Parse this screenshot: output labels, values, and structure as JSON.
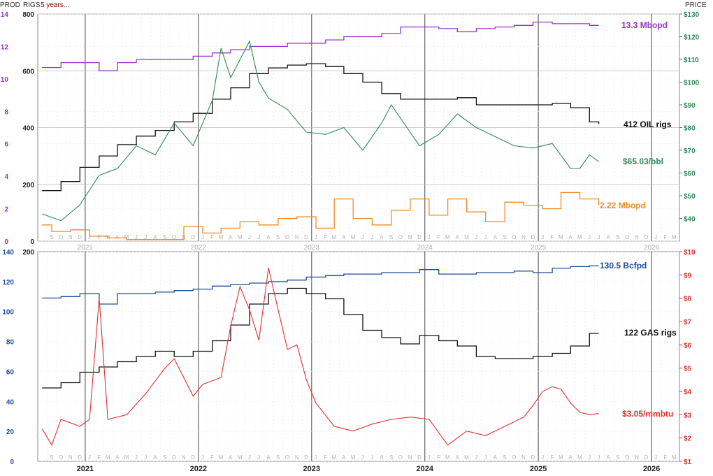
{
  "header": {
    "prod_label": "PROD",
    "rigs_label": "RIGS",
    "period_label": "5 years...",
    "price_label": "PRICE"
  },
  "colors": {
    "oil_prod": "#9933cc",
    "oil_price": "#2e8b57",
    "oil_rigs": "#111111",
    "ngl_prod": "#f08c28",
    "gas_prod": "#1f4e99",
    "gas_price": "#e03030",
    "gas_rigs": "#111111",
    "left_axis_purple": "#9933cc",
    "left_axis_blue": "#1f4e99",
    "right_axis_green": "#2e8b57",
    "right_axis_red": "#e03030",
    "grid": "#cccccc",
    "year_line": "#666666",
    "month_text": "#b0b0b0"
  },
  "chart_data": [
    {
      "type": "line",
      "panel": "oil",
      "x_axis": {
        "start": "2020-08",
        "end": "2026-04",
        "month_letters": [
          "S",
          "O",
          "N",
          "D",
          "J",
          "F",
          "M",
          "A",
          "M",
          "J",
          "J",
          "A",
          "S",
          "O",
          "N",
          "D",
          "J",
          "F",
          "M",
          "A",
          "M",
          "J",
          "J",
          "A",
          "S",
          "O",
          "N",
          "D",
          "J",
          "F",
          "M",
          "A",
          "M",
          "J",
          "J",
          "A",
          "S",
          "O",
          "N",
          "D",
          "J",
          "F",
          "M",
          "A",
          "M",
          "J",
          "J",
          "A",
          "S",
          "O",
          "N",
          "D",
          "J",
          "F",
          "M",
          "A",
          "M",
          "J",
          "J",
          "A",
          "S",
          "O",
          "N",
          "D",
          "J",
          "F",
          "M"
        ],
        "year_labels": [
          "2021",
          "2022",
          "2023",
          "2024",
          "2025",
          "2026"
        ]
      },
      "left_axis_prod": {
        "min": 0,
        "max": 14,
        "ticks": [
          "0",
          "2",
          "4",
          "6",
          "8",
          "10",
          "12",
          "14"
        ]
      },
      "left_axis_rigs": {
        "min": 0,
        "max": 800,
        "ticks": [
          "0",
          "200",
          "400",
          "600",
          "800"
        ]
      },
      "right_axis_price": {
        "min": 30,
        "max": 130,
        "ticks": [
          "$40",
          "$50",
          "$60",
          "$70",
          "$80",
          "$90",
          "$100",
          "$110",
          "$120",
          "$130"
        ]
      },
      "grid": true,
      "series": [
        {
          "name": "13.3 Mbopd",
          "key": "oil_prod",
          "axis": "prod",
          "step": true,
          "x": [
            "2020-08",
            "2020-10",
            "2020-12",
            "2021-02",
            "2021-04",
            "2021-06",
            "2021-08",
            "2021-10",
            "2021-12",
            "2022-02",
            "2022-04",
            "2022-06",
            "2022-08",
            "2022-10",
            "2022-12",
            "2023-02",
            "2023-04",
            "2023-06",
            "2023-08",
            "2023-10",
            "2023-12",
            "2024-02",
            "2024-04",
            "2024-06",
            "2024-08",
            "2024-10",
            "2024-12",
            "2025-02",
            "2025-04",
            "2025-06",
            "2025-07"
          ],
          "y": [
            10.7,
            11.0,
            11.0,
            10.5,
            11.0,
            11.2,
            11.2,
            11.2,
            11.4,
            11.6,
            11.8,
            12.0,
            12.0,
            12.2,
            12.2,
            12.4,
            12.6,
            12.6,
            12.8,
            13.2,
            13.2,
            13.1,
            12.9,
            13.1,
            13.2,
            13.3,
            13.5,
            13.4,
            13.4,
            13.3,
            13.3
          ]
        },
        {
          "name": "412 OIL rigs",
          "key": "oil_rigs",
          "axis": "rigs",
          "step": true,
          "x": [
            "2020-08",
            "2020-10",
            "2020-12",
            "2021-02",
            "2021-04",
            "2021-06",
            "2021-08",
            "2021-10",
            "2021-12",
            "2022-02",
            "2022-04",
            "2022-06",
            "2022-08",
            "2022-10",
            "2022-12",
            "2023-02",
            "2023-04",
            "2023-06",
            "2023-08",
            "2023-10",
            "2023-12",
            "2024-02",
            "2024-04",
            "2024-06",
            "2024-08",
            "2024-10",
            "2024-12",
            "2025-02",
            "2025-04",
            "2025-06",
            "2025-07"
          ],
          "y": [
            178,
            210,
            260,
            300,
            340,
            370,
            390,
            420,
            450,
            500,
            540,
            590,
            610,
            620,
            625,
            615,
            590,
            560,
            520,
            500,
            500,
            500,
            505,
            480,
            480,
            480,
            480,
            485,
            470,
            420,
            412
          ]
        },
        {
          "name": "$65.03/bbl",
          "key": "oil_price",
          "axis": "price",
          "step": false,
          "x": [
            "2020-08",
            "2020-10",
            "2020-12",
            "2021-02",
            "2021-04",
            "2021-06",
            "2021-08",
            "2021-10",
            "2021-12",
            "2022-02",
            "2022-03",
            "2022-04",
            "2022-06",
            "2022-07",
            "2022-08",
            "2022-10",
            "2022-12",
            "2023-02",
            "2023-04",
            "2023-06",
            "2023-08",
            "2023-09",
            "2023-10",
            "2023-12",
            "2024-02",
            "2024-04",
            "2024-06",
            "2024-08",
            "2024-10",
            "2024-12",
            "2025-02",
            "2025-04",
            "2025-05",
            "2025-06",
            "2025-07"
          ],
          "y": [
            42,
            39,
            46,
            59,
            62,
            72,
            68,
            82,
            72,
            92,
            115,
            102,
            118,
            100,
            93,
            88,
            78,
            77,
            80,
            70,
            82,
            90,
            84,
            72,
            77,
            86,
            80,
            76,
            72,
            71,
            73,
            62,
            62,
            68,
            65
          ]
        },
        {
          "name": "2.22 Mbopd",
          "key": "ngl_prod",
          "axis": "prod",
          "step": true,
          "x": [
            "2020-08",
            "2020-09",
            "2020-11",
            "2021-01",
            "2021-03",
            "2021-05",
            "2021-07",
            "2021-09",
            "2021-11",
            "2022-01",
            "2022-03",
            "2022-05",
            "2022-07",
            "2022-09",
            "2022-11",
            "2023-01",
            "2023-03",
            "2023-05",
            "2023-07",
            "2023-09",
            "2023-11",
            "2024-01",
            "2024-03",
            "2024-05",
            "2024-07",
            "2024-09",
            "2024-11",
            "2025-01",
            "2025-03",
            "2025-05",
            "2025-07"
          ],
          "y": [
            1.0,
            0.6,
            0.7,
            0.3,
            0.2,
            0.1,
            0.1,
            0.1,
            0.9,
            0.5,
            0.8,
            1.2,
            1.0,
            1.4,
            1.5,
            0.8,
            2.6,
            1.4,
            1.0,
            1.9,
            2.6,
            1.6,
            2.6,
            1.8,
            1.2,
            2.4,
            2.2,
            2.0,
            3.0,
            2.6,
            2.2
          ]
        }
      ],
      "labels": {
        "oil_prod": "13.3 Mbopd",
        "oil_rigs": "412 OIL rigs",
        "oil_price": "$65.03/bbl",
        "ngl_prod": "2.22 Mbopd"
      }
    },
    {
      "type": "line",
      "panel": "gas",
      "x_axis": {
        "start": "2020-08",
        "end": "2026-04"
      },
      "left_axis_prod": {
        "min": 0,
        "max": 140,
        "ticks": [
          "0",
          "20",
          "40",
          "60",
          "80",
          "100",
          "120",
          "140"
        ]
      },
      "left_axis_rigs": {
        "min": 0,
        "max": 200,
        "ticks": [
          "200"
        ]
      },
      "right_axis_price": {
        "min": 1,
        "max": 10,
        "ticks": [
          "$1",
          "$2",
          "$3",
          "$4",
          "$5",
          "$6",
          "$7",
          "$8",
          "$9",
          "$10"
        ]
      },
      "grid": true,
      "series": [
        {
          "name": "130.5 Bcfpd",
          "key": "gas_prod",
          "axis": "prod",
          "step": true,
          "x": [
            "2020-08",
            "2020-10",
            "2020-12",
            "2021-02",
            "2021-04",
            "2021-06",
            "2021-08",
            "2021-10",
            "2021-12",
            "2022-02",
            "2022-04",
            "2022-06",
            "2022-08",
            "2022-10",
            "2022-12",
            "2023-02",
            "2023-04",
            "2023-06",
            "2023-08",
            "2023-10",
            "2023-12",
            "2024-02",
            "2024-04",
            "2024-06",
            "2024-08",
            "2024-10",
            "2024-12",
            "2025-02",
            "2025-04",
            "2025-06",
            "2025-07"
          ],
          "y": [
            109,
            110,
            112,
            105,
            112,
            112,
            113,
            114,
            115,
            117,
            118,
            119,
            120,
            121,
            123,
            124,
            125,
            125,
            126,
            126,
            128,
            125,
            125,
            126,
            126,
            127,
            126,
            129,
            130,
            130.5,
            130.5
          ]
        },
        {
          "name": "122 GAS rigs",
          "key": "gas_rigs",
          "axis": "rigs",
          "step": true,
          "x": [
            "2020-08",
            "2020-10",
            "2020-12",
            "2021-02",
            "2021-04",
            "2021-06",
            "2021-08",
            "2021-10",
            "2021-12",
            "2022-02",
            "2022-04",
            "2022-06",
            "2022-08",
            "2022-10",
            "2022-12",
            "2023-02",
            "2023-04",
            "2023-06",
            "2023-08",
            "2023-10",
            "2023-12",
            "2024-02",
            "2024-04",
            "2024-06",
            "2024-08",
            "2024-10",
            "2024-12",
            "2025-02",
            "2025-04",
            "2025-06",
            "2025-07"
          ],
          "y": [
            70,
            75,
            85,
            90,
            95,
            100,
            105,
            100,
            105,
            115,
            130,
            150,
            160,
            165,
            160,
            155,
            140,
            125,
            118,
            112,
            120,
            115,
            110,
            100,
            98,
            98,
            100,
            103,
            110,
            122,
            122
          ]
        },
        {
          "name": "$3.05/mmbtu",
          "key": "gas_price",
          "axis": "price",
          "step": false,
          "x": [
            "2020-08",
            "2020-09",
            "2020-10",
            "2020-12",
            "2021-01",
            "2021-02",
            "2021-03",
            "2021-05",
            "2021-07",
            "2021-09",
            "2021-10",
            "2021-12",
            "2022-01",
            "2022-03",
            "2022-04",
            "2022-05",
            "2022-06",
            "2022-07",
            "2022-08",
            "2022-09",
            "2022-10",
            "2022-11",
            "2022-12",
            "2023-01",
            "2023-03",
            "2023-05",
            "2023-07",
            "2023-09",
            "2023-11",
            "2024-01",
            "2024-03",
            "2024-05",
            "2024-07",
            "2024-09",
            "2024-11",
            "2024-12",
            "2025-01",
            "2025-02",
            "2025-03",
            "2025-04",
            "2025-05",
            "2025-06",
            "2025-07"
          ],
          "y": [
            2.4,
            1.7,
            2.8,
            2.5,
            2.8,
            8.0,
            2.8,
            3.0,
            3.9,
            5.0,
            5.4,
            3.8,
            4.3,
            4.6,
            6.8,
            8.5,
            7.5,
            6.2,
            9.3,
            7.5,
            5.8,
            6.0,
            4.5,
            3.5,
            2.5,
            2.3,
            2.6,
            2.8,
            2.9,
            2.8,
            1.7,
            2.3,
            2.1,
            2.5,
            2.9,
            3.4,
            4.0,
            4.2,
            4.1,
            3.5,
            3.1,
            3.0,
            3.05
          ]
        }
      ],
      "labels": {
        "gas_prod": "130.5 Bcfpd",
        "gas_rigs": "122 GAS rigs",
        "gas_price": "$3.05/mmbtu"
      }
    }
  ]
}
